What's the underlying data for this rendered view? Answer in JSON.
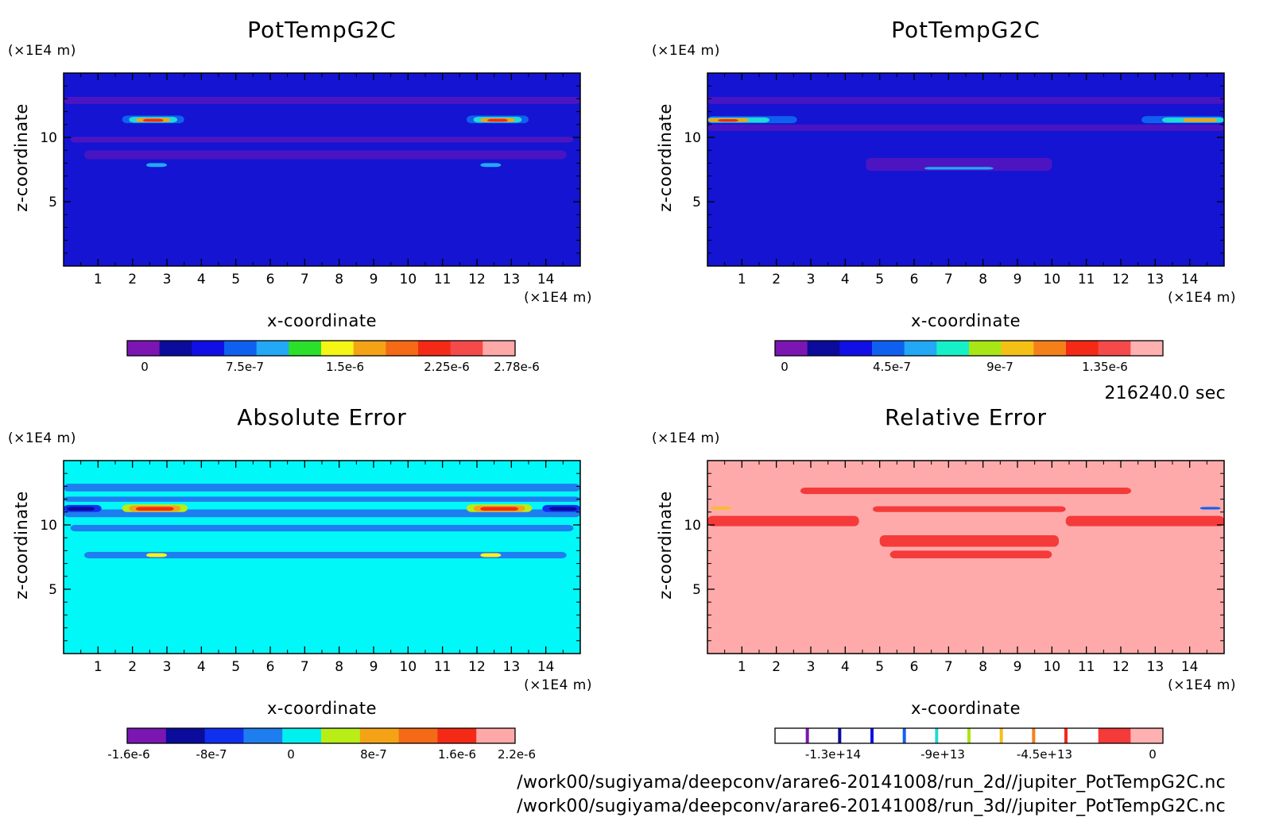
{
  "chart_data": [
    {
      "type": "heatmap",
      "title": "PotTempG2C",
      "xlabel": "x-coordinate",
      "ylabel": "z-coordinate",
      "x_unit": "(×1E4 m)",
      "y_unit": "(×1E4 m)",
      "xlim": [
        0,
        15
      ],
      "ylim": [
        0,
        15
      ],
      "x_ticks": [
        "1",
        "2",
        "3",
        "4",
        "5",
        "6",
        "7",
        "8",
        "9",
        "10",
        "11",
        "12",
        "13",
        "14"
      ],
      "y_ticks": [
        "5",
        "10"
      ],
      "background": "#1414d2",
      "colorbar": {
        "colors": [
          "#7b16b3",
          "#0b0b9c",
          "#1010e6",
          "#1060f0",
          "#22a8f5",
          "#2be02b",
          "#f5f516",
          "#f5a316",
          "#f56a16",
          "#f52a16",
          "#f54a4a",
          "#ffa8a8"
        ],
        "labels": [
          "0",
          "7.5e-7",
          "1.5e-6",
          "2.25e-6",
          "2.78e-6"
        ]
      }
    },
    {
      "type": "heatmap",
      "title": "PotTempG2C",
      "xlabel": "x-coordinate",
      "ylabel": "z-coordinate",
      "x_unit": "(×1E4 m)",
      "y_unit": "(×1E4 m)",
      "xlim": [
        0,
        15
      ],
      "ylim": [
        0,
        15
      ],
      "x_ticks": [
        "1",
        "2",
        "3",
        "4",
        "5",
        "6",
        "7",
        "8",
        "9",
        "10",
        "11",
        "12",
        "13",
        "14"
      ],
      "y_ticks": [
        "5",
        "10"
      ],
      "background": "#1414d2",
      "colorbar": {
        "colors": [
          "#7b16b3",
          "#0b0b9c",
          "#1010e6",
          "#1060f0",
          "#22a8f5",
          "#16f0c8",
          "#a8e616",
          "#f5c016",
          "#f5801a",
          "#f52a16",
          "#f54a4a",
          "#ffb0b0"
        ],
        "labels": [
          "0",
          "4.5e-7",
          "9e-7",
          "1.35e-6"
        ]
      }
    },
    {
      "type": "heatmap",
      "title": "Absolute Error",
      "xlabel": "x-coordinate",
      "ylabel": "z-coordinate",
      "x_unit": "(×1E4 m)",
      "y_unit": "(×1E4 m)",
      "xlim": [
        0,
        15
      ],
      "ylim": [
        0,
        15
      ],
      "x_ticks": [
        "1",
        "2",
        "3",
        "4",
        "5",
        "6",
        "7",
        "8",
        "9",
        "10",
        "11",
        "12",
        "13",
        "14"
      ],
      "y_ticks": [
        "5",
        "10"
      ],
      "background": "#00f8f8",
      "colorbar": {
        "colors": [
          "#7b16b3",
          "#0b0b9c",
          "#1030f0",
          "#1e7ef0",
          "#00f0f0",
          "#b8ee16",
          "#f5a316",
          "#f56a16",
          "#f52a16",
          "#ffa8a8"
        ],
        "labels": [
          "-1.6e-6",
          "-8e-7",
          "0",
          "8e-7",
          "1.6e-6",
          "2.2e-6"
        ]
      }
    },
    {
      "type": "heatmap",
      "title": "Relative Error",
      "xlabel": "x-coordinate",
      "ylabel": "z-coordinate",
      "x_unit": "(×1E4 m)",
      "y_unit": "(×1E4 m)",
      "xlim": [
        0,
        15
      ],
      "ylim": [
        0,
        15
      ],
      "x_ticks": [
        "1",
        "2",
        "3",
        "4",
        "5",
        "6",
        "7",
        "8",
        "9",
        "10",
        "11",
        "12",
        "13",
        "14"
      ],
      "y_ticks": [
        "5",
        "10"
      ],
      "background": "#ffaaaa",
      "colorbar": {
        "colors": [
          "#ffffff",
          "#ffffff",
          "#ffffff",
          "#ffffff",
          "#ffffff",
          "#ffffff",
          "#ffffff",
          "#ffffff",
          "#ffffff",
          "#ffffff",
          "#f53a3a",
          "#ffb0b0"
        ],
        "separator_colors": [
          "#7b16b3",
          "#0b0b9c",
          "#1010e6",
          "#1060f0",
          "#22d8d8",
          "#a8e616",
          "#f5c016",
          "#f5801a",
          "#f52a16"
        ],
        "labels": [
          "-1.3e+14",
          "-9e+13",
          "-4.5e+13",
          "0"
        ]
      }
    }
  ],
  "timestamp": "216240.0 sec",
  "files": [
    "/work00/sugiyama/deepconv/arare6-20141008/run_2d//jupiter_PotTempG2C.nc",
    "/work00/sugiyama/deepconv/arare6-20141008/run_3d//jupiter_PotTempG2C.nc"
  ]
}
